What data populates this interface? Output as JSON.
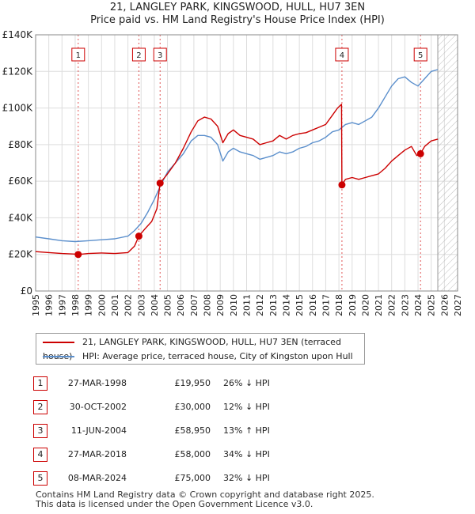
{
  "header": {
    "title_line1": "21, LANGLEY PARK, KINGSWOOD, HULL, HU7 3EN",
    "title_line2": "Price paid vs. HM Land Registry's House Price Index (HPI)"
  },
  "legend": {
    "property": "21, LANGLEY PARK, KINGSWOOD, HULL, HU7 3EN (terraced house)",
    "hpi": "HPI: Average price, terraced house, City of Kingston upon Hull"
  },
  "colors": {
    "property": "#cc0000",
    "hpi": "#5b8fcc",
    "grid": "#dddddd",
    "future_hatch": "#bbbbbb"
  },
  "sales": [
    {
      "num": "1",
      "date": "27-MAR-1998",
      "price": "£19,950",
      "hpi": "26% ↓ HPI"
    },
    {
      "num": "2",
      "date": "30-OCT-2002",
      "price": "£30,000",
      "hpi": "12% ↓ HPI"
    },
    {
      "num": "3",
      "date": "11-JUN-2004",
      "price": "£58,950",
      "hpi": "13% ↑ HPI"
    },
    {
      "num": "4",
      "date": "27-MAR-2018",
      "price": "£58,000",
      "hpi": "34% ↓ HPI"
    },
    {
      "num": "5",
      "date": "08-MAR-2024",
      "price": "£75,000",
      "hpi": "32% ↓ HPI"
    }
  ],
  "footer": {
    "line1": "Contains HM Land Registry data © Crown copyright and database right 2025.",
    "line2": "This data is licensed under the Open Government Licence v3.0."
  },
  "chart_data": {
    "type": "line",
    "title": "Price paid vs. HM Land Registry's House Price Index (HPI)",
    "xlim": [
      1995,
      2027
    ],
    "ylim": [
      0,
      140000
    ],
    "x_ticks": [
      1995,
      1996,
      1997,
      1998,
      1999,
      2000,
      2001,
      2002,
      2003,
      2004,
      2005,
      2006,
      2007,
      2008,
      2009,
      2010,
      2011,
      2012,
      2013,
      2014,
      2015,
      2016,
      2017,
      2018,
      2019,
      2020,
      2021,
      2022,
      2023,
      2024,
      2025,
      2026,
      2027
    ],
    "y_ticks": [
      0,
      20000,
      40000,
      60000,
      80000,
      100000,
      120000,
      140000
    ],
    "y_tick_labels": [
      "£0",
      "£20K",
      "£40K",
      "£60K",
      "£80K",
      "£100K",
      "£120K",
      "£140K"
    ],
    "future_from": 2025.5,
    "series": [
      {
        "name": "21, LANGLEY PARK, KINGSWOOD, HULL, HU7 3EN (terraced house)",
        "x": [
          1995.0,
          1996.0,
          1997.0,
          1998.0,
          1998.23,
          1999.0,
          2000.0,
          2001.0,
          2002.0,
          2002.5,
          2002.83,
          2003.3,
          2003.8,
          2004.2,
          2004.44,
          2005.0,
          2005.6,
          2006.2,
          2006.8,
          2007.3,
          2007.8,
          2008.3,
          2008.8,
          2009.2,
          2009.6,
          2010.0,
          2010.5,
          2011.0,
          2011.5,
          2012.0,
          2012.5,
          2013.0,
          2013.5,
          2014.0,
          2014.5,
          2015.0,
          2015.5,
          2016.0,
          2016.5,
          2017.0,
          2017.5,
          2017.9,
          2018.2,
          2018.23,
          2018.5,
          2019.0,
          2019.5,
          2020.0,
          2020.5,
          2021.0,
          2021.5,
          2022.0,
          2022.5,
          2023.0,
          2023.5,
          2023.9,
          2024.19,
          2024.5,
          2025.0,
          2025.5
        ],
        "y": [
          21500,
          21000,
          20500,
          20200,
          19950,
          20500,
          20800,
          20500,
          21000,
          24500,
          30000,
          34000,
          38000,
          45000,
          58950,
          64000,
          70000,
          78000,
          87000,
          93000,
          95000,
          94000,
          90000,
          81000,
          86000,
          88000,
          85000,
          84000,
          83000,
          80000,
          81000,
          82000,
          85000,
          83000,
          85000,
          86000,
          86500,
          88000,
          89500,
          91000,
          96000,
          100000,
          102000,
          58000,
          61000,
          62000,
          61000,
          62000,
          63000,
          64000,
          67000,
          71000,
          74000,
          77000,
          79000,
          74000,
          75000,
          79000,
          82000,
          83000
        ]
      },
      {
        "name": "HPI: Average price, terraced house, City of Kingston upon Hull",
        "x": [
          1995.0,
          1996.0,
          1997.0,
          1998.0,
          1999.0,
          2000.0,
          2001.0,
          2002.0,
          2002.5,
          2003.0,
          2003.5,
          2004.0,
          2004.5,
          2005.0,
          2005.6,
          2006.2,
          2006.8,
          2007.3,
          2007.8,
          2008.3,
          2008.8,
          2009.2,
          2009.6,
          2010.0,
          2010.5,
          2011.0,
          2011.5,
          2012.0,
          2012.5,
          2013.0,
          2013.5,
          2014.0,
          2014.5,
          2015.0,
          2015.5,
          2016.0,
          2016.5,
          2017.0,
          2017.5,
          2018.0,
          2018.5,
          2019.0,
          2019.5,
          2020.0,
          2020.5,
          2021.0,
          2021.5,
          2022.0,
          2022.5,
          2023.0,
          2023.5,
          2024.0,
          2024.5,
          2025.0,
          2025.5
        ],
        "y": [
          29500,
          28500,
          27500,
          27000,
          27500,
          28000,
          28500,
          30000,
          33000,
          37000,
          43000,
          50000,
          58000,
          65000,
          70000,
          75000,
          82000,
          85000,
          85000,
          84000,
          80000,
          71000,
          76000,
          78000,
          76000,
          75000,
          74000,
          72000,
          73000,
          74000,
          76000,
          75000,
          76000,
          78000,
          79000,
          81000,
          82000,
          84000,
          87000,
          88000,
          91000,
          92000,
          91000,
          93000,
          95000,
          100000,
          106000,
          112000,
          116000,
          117000,
          114000,
          112000,
          116000,
          120000,
          121000
        ]
      }
    ],
    "sale_markers": [
      {
        "label": "1",
        "x": 1998.23,
        "y": 19950
      },
      {
        "label": "2",
        "x": 2002.83,
        "y": 30000
      },
      {
        "label": "3",
        "x": 2004.44,
        "y": 58950
      },
      {
        "label": "4",
        "x": 2018.23,
        "y": 58000
      },
      {
        "label": "5",
        "x": 2024.19,
        "y": 75000
      }
    ]
  }
}
